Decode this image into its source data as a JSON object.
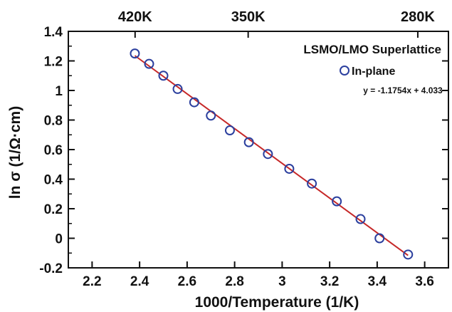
{
  "chart_data": {
    "type": "scatter",
    "xlabel": "1000/Temperature (1/K)",
    "ylabel": "ln σ (1/Ω·cm)",
    "xlim": [
      2.1,
      3.7
    ],
    "ylim": [
      -0.2,
      1.4
    ],
    "x_ticks": [
      "2.2",
      "2.4",
      "2.6",
      "2.8",
      "3",
      "3.2",
      "3.4",
      "3.6"
    ],
    "y_ticks": [
      "-0.2",
      "0",
      "0.2",
      "0.4",
      "0.6",
      "0.8",
      "1",
      "1.2",
      "1.4"
    ],
    "top_axis_ticks": [
      {
        "label": "420K",
        "x": 2.381
      },
      {
        "label": "350K",
        "x": 2.857
      },
      {
        "label": "280K",
        "x": 3.571
      }
    ],
    "title": "LSMO/LMO Superlattice",
    "series": [
      {
        "name": "In-plane",
        "marker": "open-circle",
        "color": "#2b3f9e",
        "x": [
          2.38,
          2.44,
          2.5,
          2.56,
          2.63,
          2.7,
          2.78,
          2.86,
          2.94,
          3.03,
          3.125,
          3.23,
          3.33,
          3.41,
          3.53
        ],
        "y": [
          1.25,
          1.18,
          1.1,
          1.01,
          0.92,
          0.83,
          0.73,
          0.65,
          0.57,
          0.47,
          0.37,
          0.25,
          0.13,
          0.0,
          -0.11
        ]
      }
    ],
    "fit_line": {
      "equation": "y = -1.1754x + 4.033",
      "slope": -1.1754,
      "intercept": 4.033,
      "x_range": [
        2.38,
        3.53
      ],
      "color": "#c62828"
    }
  }
}
